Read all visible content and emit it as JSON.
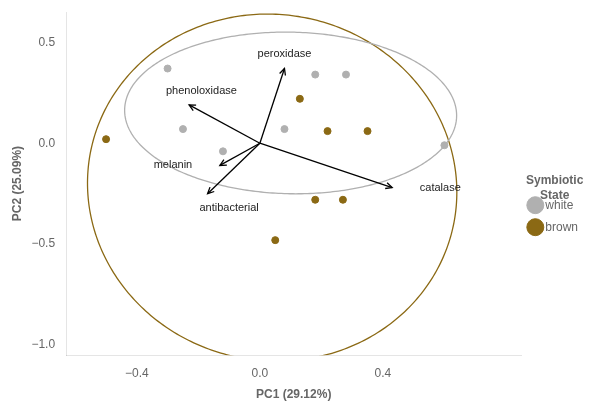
{
  "chart_data": {
    "type": "scatter",
    "xlabel": "PC1 (29.12%)",
    "ylabel": "PC2 (25.09%)",
    "xlim": [
      -0.63,
      0.85
    ],
    "ylim": [
      -1.05,
      0.65
    ],
    "xticks": [
      {
        "value": -0.4,
        "label": "−0.4"
      },
      {
        "value": 0.0,
        "label": "0.0"
      },
      {
        "value": 0.4,
        "label": "0.4"
      }
    ],
    "yticks": [
      {
        "value": -1.0,
        "label": "−1.0"
      },
      {
        "value": -0.5,
        "label": "−0.5"
      },
      {
        "value": 0.0,
        "label": "0.0"
      },
      {
        "value": 0.5,
        "label": "0.5"
      }
    ],
    "grid": false,
    "legend": "right",
    "legend_title": "Symbiotic\nState",
    "series": [
      {
        "name": "brown",
        "color": "#8B6914",
        "values": [
          [
            -0.5,
            0.02
          ],
          [
            0.13,
            0.22
          ],
          [
            0.22,
            0.06
          ],
          [
            0.18,
            -0.28
          ],
          [
            0.27,
            -0.28
          ],
          [
            0.05,
            -0.48
          ],
          [
            0.35,
            0.06
          ]
        ],
        "ellipse": {
          "center_x": 0.04,
          "center_y": -0.22,
          "width": 1.2,
          "height": 1.72,
          "angle": 2
        }
      },
      {
        "name": "white",
        "color": "#B0B0B0",
        "values": [
          [
            -0.3,
            0.37
          ],
          [
            -0.25,
            0.07
          ],
          [
            -0.12,
            -0.04
          ],
          [
            0.08,
            0.07
          ],
          [
            0.18,
            0.34
          ],
          [
            0.28,
            0.34
          ],
          [
            0.6,
            -0.01
          ]
        ],
        "ellipse": {
          "center_x": 0.1,
          "center_y": 0.15,
          "width": 1.08,
          "height": 0.8,
          "angle": -3
        }
      }
    ],
    "arrows": [
      {
        "label": "peroxidase",
        "dx": 0.08,
        "dy": 0.37,
        "x": 0.08,
        "y": 0.44,
        "align": "center"
      },
      {
        "label": "phenoloxidase",
        "dx": -0.23,
        "dy": 0.19,
        "x": -0.19,
        "y": 0.26,
        "align": "center"
      },
      {
        "label": "melanin",
        "dx": -0.13,
        "dy": -0.11,
        "x": -0.22,
        "y": -0.11,
        "align": "right"
      },
      {
        "label": "antibacterial",
        "dx": -0.17,
        "dy": -0.25,
        "x": -0.1,
        "y": -0.32,
        "align": "center"
      },
      {
        "label": "catalase",
        "dx": 0.43,
        "dy": -0.22,
        "x": 0.52,
        "y": -0.22,
        "align": "left"
      }
    ]
  }
}
